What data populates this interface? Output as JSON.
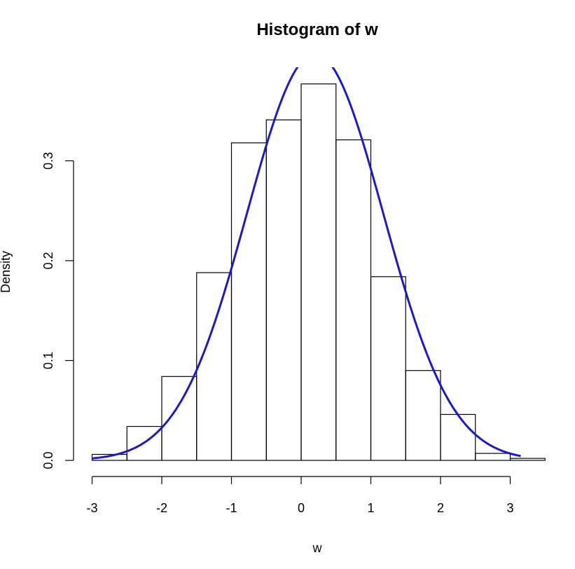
{
  "chart_data": {
    "type": "bar",
    "title": "Histogram of w",
    "xlabel": "w",
    "ylabel": "Density",
    "xlim": [
      -3,
      3.5
    ],
    "ylim": [
      0,
      0.4
    ],
    "x_ticks": [
      -3,
      -2,
      -1,
      0,
      1,
      2,
      3
    ],
    "x_tick_labels": [
      "-3",
      "-2",
      "-1",
      "0",
      "1",
      "2",
      "3"
    ],
    "y_ticks": [
      0,
      0.1,
      0.2,
      0.3
    ],
    "y_tick_labels": [
      "0.0",
      "0.1",
      "0.2",
      "0.3"
    ],
    "bins": [
      {
        "left": -3.0,
        "right": -2.5,
        "density": 0.006
      },
      {
        "left": -2.5,
        "right": -2.0,
        "density": 0.034
      },
      {
        "left": -2.0,
        "right": -1.5,
        "density": 0.084
      },
      {
        "left": -1.5,
        "right": -1.0,
        "density": 0.188
      },
      {
        "left": -1.0,
        "right": -0.5,
        "density": 0.318
      },
      {
        "left": -0.5,
        "right": 0.0,
        "density": 0.341
      },
      {
        "left": 0.0,
        "right": 0.5,
        "density": 0.377
      },
      {
        "left": 0.5,
        "right": 1.0,
        "density": 0.321
      },
      {
        "left": 1.0,
        "right": 1.5,
        "density": 0.184
      },
      {
        "left": 1.5,
        "right": 2.0,
        "density": 0.09
      },
      {
        "left": 2.0,
        "right": 2.5,
        "density": 0.046
      },
      {
        "left": 2.5,
        "right": 3.0,
        "density": 0.007
      },
      {
        "left": 3.0,
        "right": 3.5,
        "density": 0.002
      }
    ],
    "overlay_curve": {
      "type": "normal-density",
      "mean": 0.2,
      "sd": 0.98,
      "x_range": [
        -3.0,
        3.15
      ],
      "color": "#1a1acc"
    },
    "grid": false,
    "legend": "none"
  }
}
